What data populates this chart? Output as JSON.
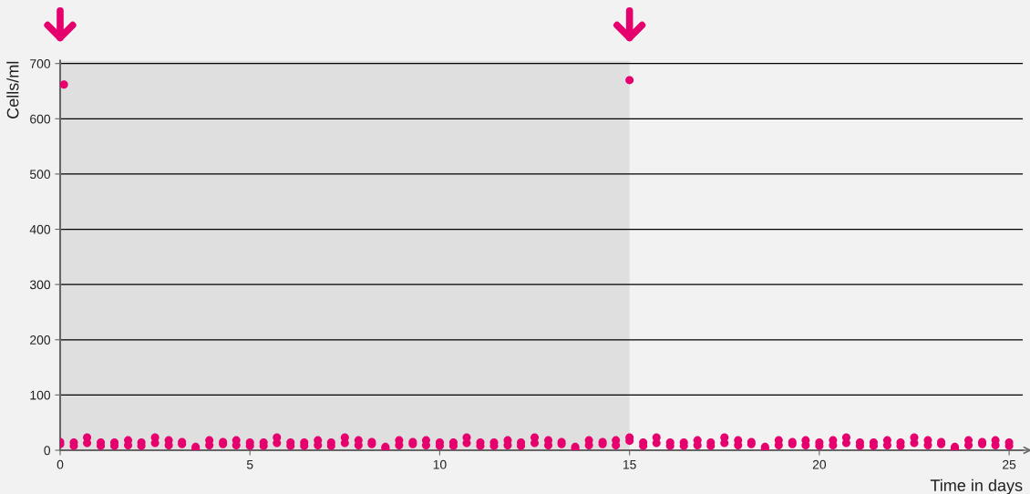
{
  "chart_data": {
    "type": "scatter",
    "xlabel": "Time in days",
    "ylabel": "Cells/ml",
    "xlim": [
      0,
      25.36
    ],
    "ylim": [
      0,
      705
    ],
    "xticks": [
      0,
      5,
      10,
      15,
      20,
      25
    ],
    "yticks": [
      0,
      100,
      200,
      300,
      400,
      500,
      600,
      700
    ],
    "grid": "y",
    "marker": "circle",
    "bands": [
      {
        "axis": "x",
        "from": 0,
        "to": 15,
        "color": "#dfdfdf"
      }
    ],
    "series": [
      {
        "color": "#e6006e",
        "x": [
          0,
          0.36,
          0.71,
          1.07,
          1.43,
          1.79,
          2.14,
          2.5,
          2.86,
          3.21,
          3.57,
          3.93,
          4.29,
          4.64,
          5,
          5.36,
          5.71,
          6.07,
          6.43,
          6.79,
          7.14,
          7.5,
          7.86,
          8.21,
          8.57,
          8.93,
          9.29,
          9.64,
          10,
          10.36,
          10.71,
          11.07,
          11.43,
          11.79,
          12.14,
          12.5,
          12.86,
          13.21,
          13.57,
          13.93,
          14.29,
          14.64,
          15,
          15.36,
          15.71,
          16.07,
          16.43,
          16.79,
          17.14,
          17.5,
          17.86,
          18.21,
          18.57,
          18.93,
          19.29,
          19.64,
          20,
          20.36,
          20.71,
          21.07,
          21.43,
          21.79,
          22.14,
          22.5,
          22.86,
          23.21,
          23.57,
          23.93,
          24.29,
          24.64,
          25,
          0,
          0.36,
          0.71,
          1.07,
          1.43,
          1.79,
          2.14,
          2.5,
          2.86,
          3.21,
          3.57,
          3.93,
          4.29,
          4.64,
          5,
          5.36,
          5.71,
          6.07,
          6.43,
          6.79,
          7.14,
          7.5,
          7.86,
          8.21,
          8.57,
          8.93,
          9.29,
          9.64,
          10,
          10.36,
          10.71,
          11.07,
          11.43,
          11.79,
          12.14,
          12.5,
          12.86,
          13.21,
          13.57,
          13.93,
          14.29,
          14.64,
          15,
          15.36,
          15.71,
          16.07,
          16.43,
          16.79,
          17.14,
          17.5,
          17.86,
          18.21,
          18.57,
          18.93,
          19.29,
          19.64,
          20,
          20.36,
          20.71,
          21.07,
          21.43,
          21.79,
          22.14,
          22.5,
          22.86,
          23.21,
          23.57,
          23.93,
          24.29,
          24.64,
          25,
          0.1,
          15
        ],
        "values": [
          15,
          14,
          23,
          14,
          14,
          18,
          14,
          23,
          18,
          15,
          6,
          18,
          15,
          18,
          14,
          14,
          23,
          14,
          14,
          18,
          14,
          23,
          18,
          15,
          6,
          18,
          15,
          18,
          14,
          14,
          23,
          14,
          14,
          18,
          14,
          23,
          18,
          15,
          6,
          18,
          15,
          18,
          23,
          14,
          23,
          14,
          14,
          18,
          14,
          23,
          18,
          15,
          6,
          18,
          15,
          18,
          14,
          18,
          23,
          14,
          14,
          18,
          14,
          23,
          18,
          15,
          6,
          18,
          15,
          18,
          14,
          11,
          8,
          13,
          8,
          8,
          9,
          8,
          13,
          9,
          11,
          3,
          9,
          11,
          9,
          8,
          8,
          13,
          8,
          8,
          9,
          8,
          13,
          9,
          11,
          3,
          9,
          11,
          9,
          8,
          8,
          13,
          8,
          8,
          9,
          8,
          13,
          9,
          11,
          3,
          9,
          11,
          9,
          17,
          8,
          13,
          8,
          8,
          9,
          8,
          13,
          9,
          11,
          3,
          9,
          11,
          9,
          8,
          9,
          13,
          8,
          8,
          9,
          8,
          13,
          9,
          11,
          3,
          9,
          11,
          9,
          8,
          662,
          670
        ]
      }
    ]
  }
}
